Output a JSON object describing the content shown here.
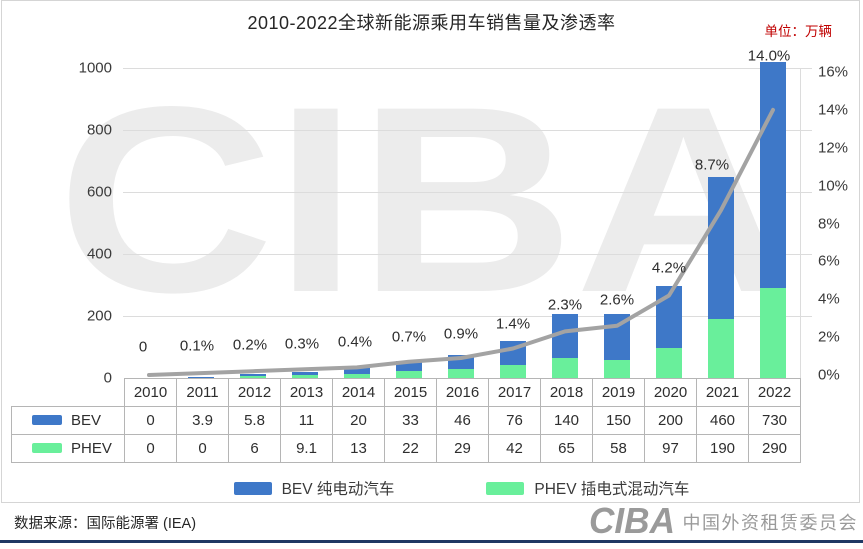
{
  "title": "2010-2022全球新能源乘用车销售量及渗透率",
  "unit_label": "单位：万辆",
  "watermark_text": "CIBA",
  "footer": {
    "source": "数据来源：国际能源署 (IEA)",
    "org_logo_text": "CIBA",
    "org_name": "中国外资租赁委员会"
  },
  "colors": {
    "bev_blue": "#3E78C8",
    "phev_green": "#69EF9B",
    "line_gray": "#A3A3A3",
    "unit_red": "#C00000",
    "navy_bar": "#1F3864",
    "watermark_gray": "#ECECEC"
  },
  "chart_data": {
    "type": "bar",
    "title": "2010-2022全球新能源乘用车销售量及渗透率",
    "categories": [
      "2010",
      "2011",
      "2012",
      "2013",
      "2014",
      "2015",
      "2016",
      "2017",
      "2018",
      "2019",
      "2020",
      "2021",
      "2022"
    ],
    "series": [
      {
        "name": "BEV",
        "legend_label": "BEV 纯电动汽车",
        "color": "#3E78C8",
        "values": [
          0,
          3.9,
          5.8,
          11,
          20,
          33,
          46,
          76,
          140,
          150,
          200,
          460,
          730
        ]
      },
      {
        "name": "PHEV",
        "legend_label": "PHEV 插电式混动汽车",
        "color": "#69EF9B",
        "values": [
          0,
          0,
          6,
          9.1,
          13,
          22,
          29,
          42,
          65,
          58,
          97,
          190,
          290
        ]
      }
    ],
    "line_series": {
      "name": "渗透率",
      "color": "#A3A3A3",
      "values": [
        0,
        0.1,
        0.2,
        0.3,
        0.4,
        0.7,
        0.9,
        1.4,
        2.3,
        2.6,
        4.2,
        8.7,
        14.0
      ],
      "labels": [
        "0",
        "0.1%",
        "0.2%",
        "0.3%",
        "0.4%",
        "0.7%",
        "0.9%",
        "1.4%",
        "2.3%",
        "2.6%",
        "4.2%",
        "8.7%",
        "14.0%"
      ]
    },
    "left_axis": {
      "ticks": [
        0,
        200,
        400,
        600,
        800,
        1000
      ],
      "min": 0,
      "max": 1000
    },
    "right_axis": {
      "ticks": [
        "0%",
        "2%",
        "4%",
        "6%",
        "8%",
        "10%",
        "12%",
        "14%",
        "16%"
      ],
      "min": 0,
      "max": 16
    },
    "grid": true,
    "legend_position": "bottom",
    "stacking": "PHEV bottom, BEV top"
  }
}
